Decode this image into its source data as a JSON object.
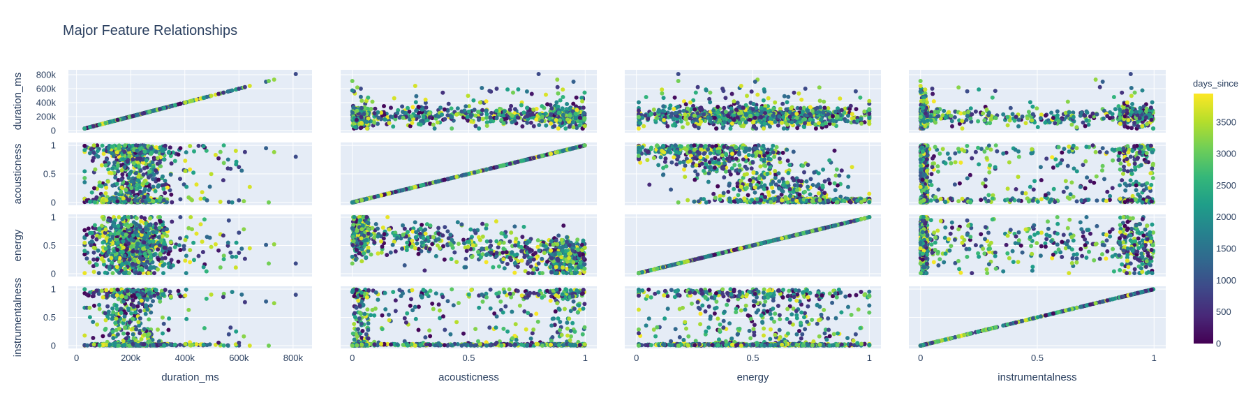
{
  "chart_data": {
    "type": "scatter",
    "title": "Major Feature Relationships",
    "dimensions": [
      "duration_ms",
      "acousticness",
      "energy",
      "instrumentalness"
    ],
    "axes": {
      "duration_ms": {
        "range": [
          -30000,
          870000
        ],
        "ticks": [
          0,
          200000,
          400000,
          600000,
          800000
        ],
        "tick_labels": [
          "0",
          "200k",
          "400k",
          "600k",
          "800k"
        ]
      },
      "acousticness": {
        "range": [
          -0.05,
          1.05
        ],
        "ticks": [
          0,
          0.5,
          1
        ],
        "tick_labels": [
          "0",
          "0.5",
          "1"
        ]
      },
      "energy": {
        "range": [
          -0.05,
          1.05
        ],
        "ticks": [
          0,
          0.5,
          1
        ],
        "tick_labels": [
          "0",
          "0.5",
          "1"
        ]
      },
      "instrumentalness": {
        "range": [
          -0.05,
          1.05
        ],
        "ticks": [
          0,
          0.5,
          1
        ],
        "tick_labels": [
          "0",
          "0.5",
          "1"
        ]
      }
    },
    "color": {
      "variable": "days_since",
      "colorscale": "Viridis",
      "range": [
        0,
        3950
      ],
      "ticks": [
        0,
        500,
        1000,
        1500,
        2000,
        2500,
        3000,
        3500
      ]
    },
    "sample_points": [
      {
        "duration_ms": 810000,
        "acousticness": 0.8,
        "energy": 0.18,
        "instrumentalness": 0.9,
        "days_since": 900
      },
      {
        "duration_ms": 730000,
        "acousticness": 0.88,
        "energy": 0.52,
        "instrumentalness": 0.75,
        "days_since": 3300
      },
      {
        "duration_ms": 700000,
        "acousticness": 0.95,
        "energy": 0.51,
        "instrumentalness": 0.78,
        "days_since": 1200
      },
      {
        "duration_ms": 710000,
        "acousticness": 0.0,
        "energy": 0.18,
        "instrumentalness": 0.0,
        "days_since": 3100
      },
      {
        "duration_ms": 640000,
        "acousticness": 0.27,
        "energy": 0.45,
        "instrumentalness": 0.0,
        "days_since": 3700
      },
      {
        "duration_ms": 600000,
        "acousticness": 0.62,
        "energy": 0.37,
        "instrumentalness": 0.05,
        "days_since": 700
      },
      {
        "duration_ms": 575000,
        "acousticness": 0.0,
        "energy": 0.3,
        "instrumentalness": 0.95,
        "days_since": 1800
      },
      {
        "duration_ms": 560000,
        "acousticness": 0.75,
        "energy": 0.55,
        "instrumentalness": 0.0,
        "days_since": 1600
      }
    ]
  }
}
